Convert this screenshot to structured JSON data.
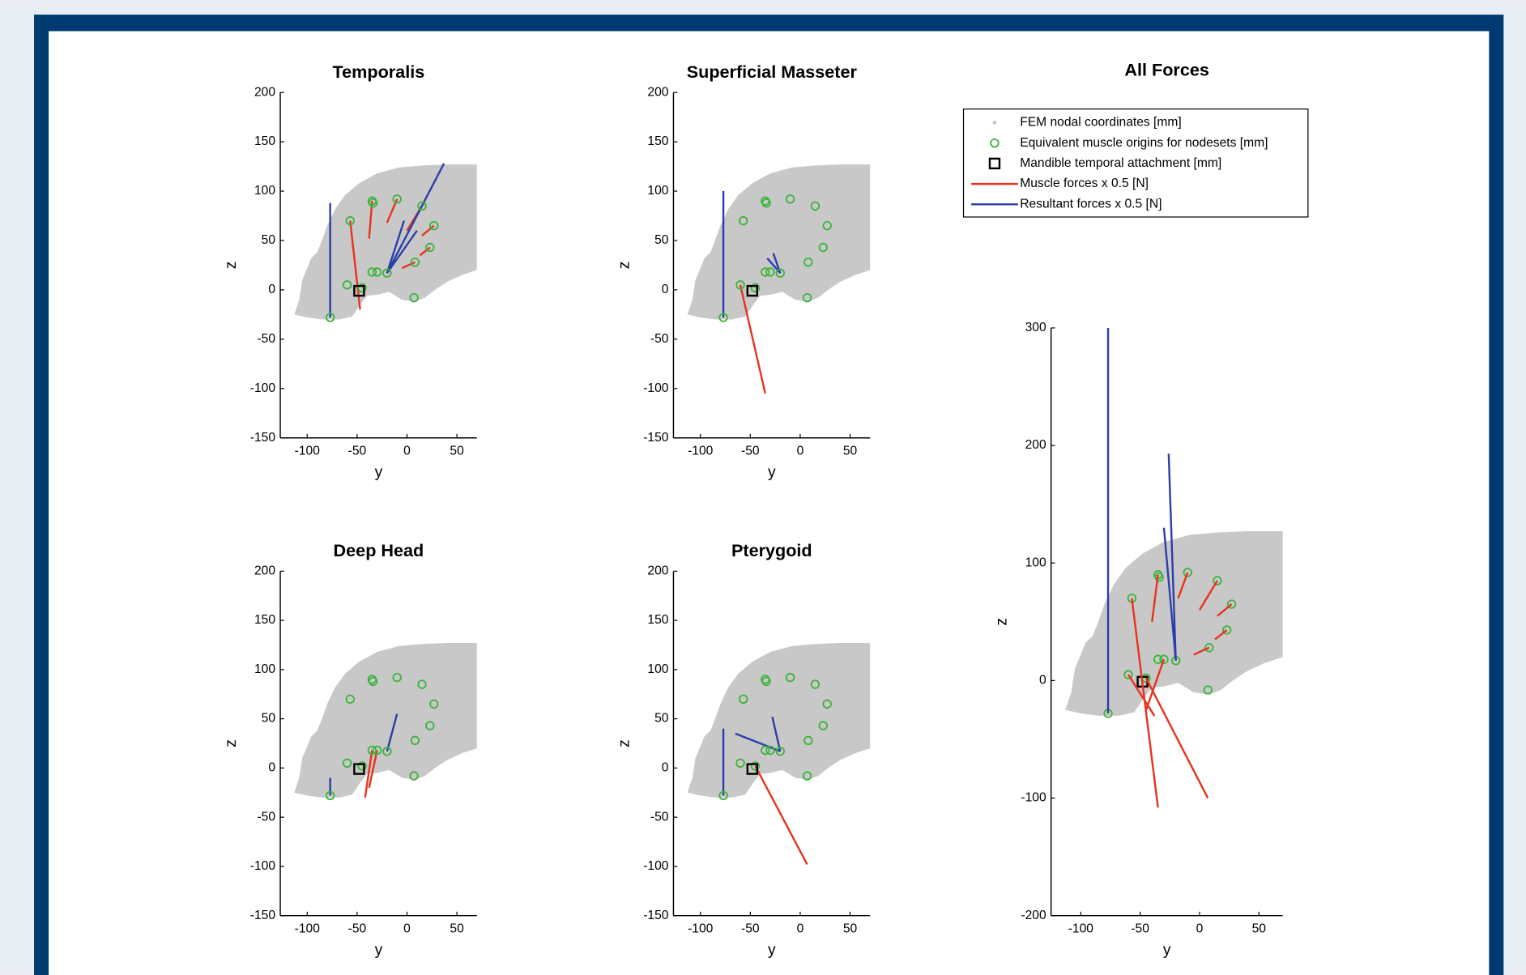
{
  "chart_data": [
    {
      "type": "scatter",
      "title": "Temporalis",
      "xlabel": "y",
      "ylabel": "z",
      "xlim": [
        -127,
        70
      ],
      "ylim": [
        -150,
        200
      ],
      "xticks": [
        -100,
        -50,
        0,
        50
      ],
      "yticks": [
        -150,
        -100,
        -50,
        0,
        50,
        100,
        150,
        200
      ],
      "series": [
        {
          "color": "#c8c8c8",
          "fill": true,
          "x": [
            -113,
            -108,
            -105,
            -100,
            -96,
            -90,
            -86,
            -80,
            -72,
            -62,
            -48,
            -30,
            -8,
            15,
            40,
            70,
            70,
            55,
            40,
            28,
            18,
            8,
            -5,
            -18,
            -30,
            -40,
            -47,
            -55,
            -68,
            -85,
            -100,
            -113
          ],
          "y": [
            -25,
            -10,
            10,
            22,
            32,
            38,
            48,
            65,
            82,
            96,
            108,
            118,
            124,
            126,
            127,
            127,
            20,
            15,
            8,
            0,
            -8,
            -12,
            -10,
            -2,
            -5,
            -6,
            -15,
            -27,
            -30,
            -30,
            -28,
            -25
          ]
        },
        {
          "color": "#e8321e",
          "line": true,
          "x": [
            -57,
            -47,
            null,
            -35,
            -38,
            null,
            -10,
            -20,
            null,
            15,
            0,
            null,
            27,
            15,
            null,
            23,
            13,
            null,
            8,
            -5
          ],
          "y": [
            70,
            -20,
            null,
            90,
            52,
            null,
            92,
            68,
            null,
            85,
            60,
            null,
            65,
            55,
            null,
            43,
            35,
            null,
            28,
            22
          ]
        },
        {
          "color": "#2b3fa8",
          "line": true,
          "x": [
            -77,
            -77,
            null,
            -20,
            37,
            null,
            -20,
            -3,
            null,
            -20,
            10
          ],
          "y": [
            -28,
            88,
            null,
            17,
            128,
            null,
            17,
            70,
            null,
            17,
            60
          ]
        },
        {
          "color": "#3cb43c",
          "marker": "o",
          "x": [
            -57,
            -35,
            -34,
            -10,
            15,
            27,
            23,
            8,
            -35,
            -30,
            -20,
            -60,
            -45,
            7,
            -77
          ],
          "y": [
            70,
            90,
            88,
            92,
            85,
            65,
            43,
            28,
            18,
            18,
            17,
            5,
            2,
            -8,
            -28
          ]
        },
        {
          "color": "#000000",
          "marker": "s",
          "x": [
            -48
          ],
          "y": [
            -1
          ]
        }
      ]
    },
    {
      "type": "scatter",
      "title": "Superficial Masseter",
      "xlabel": "y",
      "ylabel": "z",
      "xlim": [
        -127,
        70
      ],
      "ylim": [
        -150,
        200
      ],
      "xticks": [
        -100,
        -50,
        0,
        50
      ],
      "yticks": [
        -150,
        -100,
        -50,
        0,
        50,
        100,
        150,
        200
      ],
      "series": [
        {
          "color": "#c8c8c8",
          "fill": true,
          "x": [
            -113,
            -108,
            -105,
            -100,
            -96,
            -90,
            -86,
            -80,
            -72,
            -62,
            -48,
            -30,
            -8,
            15,
            40,
            70,
            70,
            55,
            40,
            28,
            18,
            8,
            -5,
            -18,
            -30,
            -40,
            -47,
            -55,
            -68,
            -85,
            -100,
            -113
          ],
          "y": [
            -25,
            -10,
            10,
            22,
            32,
            38,
            48,
            65,
            82,
            96,
            108,
            118,
            124,
            126,
            127,
            127,
            20,
            15,
            8,
            0,
            -8,
            -12,
            -10,
            -2,
            -5,
            -6,
            -15,
            -27,
            -30,
            -30,
            -28,
            -25
          ]
        },
        {
          "color": "#e8321e",
          "line": true,
          "x": [
            -60,
            -35
          ],
          "y": [
            5,
            -105
          ]
        },
        {
          "color": "#2b3fa8",
          "line": true,
          "x": [
            -77,
            -77,
            null,
            -20,
            -33,
            null,
            -20,
            -27
          ],
          "y": [
            -28,
            100,
            null,
            17,
            32,
            null,
            17,
            37
          ]
        },
        {
          "color": "#3cb43c",
          "marker": "o",
          "x": [
            -57,
            -35,
            -34,
            -10,
            15,
            27,
            23,
            8,
            -35,
            -30,
            -20,
            -60,
            -45,
            7,
            -77
          ],
          "y": [
            70,
            90,
            88,
            92,
            85,
            65,
            43,
            28,
            18,
            18,
            17,
            5,
            2,
            -8,
            -28
          ]
        },
        {
          "color": "#000000",
          "marker": "s",
          "x": [
            -48
          ],
          "y": [
            -1
          ]
        }
      ]
    },
    {
      "type": "scatter",
      "title": "Deep Head",
      "xlabel": "y",
      "ylabel": "z",
      "xlim": [
        -127,
        70
      ],
      "ylim": [
        -150,
        200
      ],
      "xticks": [
        -100,
        -50,
        0,
        50
      ],
      "yticks": [
        -150,
        -100,
        -50,
        0,
        50,
        100,
        150,
        200
      ],
      "series": [
        {
          "color": "#c8c8c8",
          "fill": true,
          "x": [
            -113,
            -108,
            -105,
            -100,
            -96,
            -90,
            -86,
            -80,
            -72,
            -62,
            -48,
            -30,
            -8,
            15,
            40,
            70,
            70,
            55,
            40,
            28,
            18,
            8,
            -5,
            -18,
            -30,
            -40,
            -47,
            -55,
            -68,
            -85,
            -100,
            -113
          ],
          "y": [
            -25,
            -10,
            10,
            22,
            32,
            38,
            48,
            65,
            82,
            96,
            108,
            118,
            124,
            126,
            127,
            127,
            20,
            15,
            8,
            0,
            -8,
            -12,
            -10,
            -2,
            -5,
            -6,
            -15,
            -27,
            -30,
            -30,
            -28,
            -25
          ]
        },
        {
          "color": "#e8321e",
          "line": true,
          "x": [
            -35,
            -42,
            null,
            -30,
            -38
          ],
          "y": [
            18,
            -30,
            null,
            18,
            -20
          ]
        },
        {
          "color": "#2b3fa8",
          "line": true,
          "x": [
            -77,
            -77,
            null,
            -20,
            -10
          ],
          "y": [
            -28,
            -10,
            null,
            17,
            55
          ]
        },
        {
          "color": "#3cb43c",
          "marker": "o",
          "x": [
            -57,
            -35,
            -34,
            -10,
            15,
            27,
            23,
            8,
            -35,
            -30,
            -20,
            -60,
            -45,
            7,
            -77
          ],
          "y": [
            70,
            90,
            88,
            92,
            85,
            65,
            43,
            28,
            18,
            18,
            17,
            5,
            2,
            -8,
            -28
          ]
        },
        {
          "color": "#000000",
          "marker": "s",
          "x": [
            -48
          ],
          "y": [
            -1
          ]
        }
      ]
    },
    {
      "type": "scatter",
      "title": "Pterygoid",
      "xlabel": "y",
      "ylabel": "z",
      "xlim": [
        -127,
        70
      ],
      "ylim": [
        -150,
        200
      ],
      "xticks": [
        -100,
        -50,
        0,
        50
      ],
      "yticks": [
        -150,
        -100,
        -50,
        0,
        50,
        100,
        150,
        200
      ],
      "series": [
        {
          "color": "#c8c8c8",
          "fill": true,
          "x": [
            -113,
            -108,
            -105,
            -100,
            -96,
            -90,
            -86,
            -80,
            -72,
            -62,
            -48,
            -30,
            -8,
            15,
            40,
            70,
            70,
            55,
            40,
            28,
            18,
            8,
            -5,
            -18,
            -30,
            -40,
            -47,
            -55,
            -68,
            -85,
            -100,
            -113
          ],
          "y": [
            -25,
            -10,
            10,
            22,
            32,
            38,
            48,
            65,
            82,
            96,
            108,
            118,
            124,
            126,
            127,
            127,
            20,
            15,
            8,
            0,
            -8,
            -12,
            -10,
            -2,
            -5,
            -6,
            -15,
            -27,
            -30,
            -30,
            -28,
            -25
          ]
        },
        {
          "color": "#e8321e",
          "line": true,
          "x": [
            -45,
            7
          ],
          "y": [
            2,
            -98
          ]
        },
        {
          "color": "#2b3fa8",
          "line": true,
          "x": [
            -77,
            -77,
            null,
            -20,
            -65,
            null,
            -20,
            -28
          ],
          "y": [
            -28,
            40,
            null,
            17,
            35,
            null,
            17,
            52
          ]
        },
        {
          "color": "#3cb43c",
          "marker": "o",
          "x": [
            -57,
            -35,
            -34,
            -10,
            15,
            27,
            23,
            8,
            -35,
            -30,
            -20,
            -60,
            -45,
            7,
            -77
          ],
          "y": [
            70,
            90,
            88,
            92,
            85,
            65,
            43,
            28,
            18,
            18,
            17,
            5,
            2,
            -8,
            -28
          ]
        },
        {
          "color": "#000000",
          "marker": "s",
          "x": [
            -48
          ],
          "y": [
            -1
          ]
        }
      ]
    },
    {
      "type": "scatter",
      "title": "All Forces",
      "xlabel": "y",
      "ylabel": "z",
      "xlim": [
        -125,
        70
      ],
      "ylim": [
        -200,
        300
      ],
      "xticks": [
        -100,
        -50,
        0,
        50
      ],
      "yticks": [
        -200,
        -100,
        0,
        100,
        200,
        300
      ],
      "series": [
        {
          "name": "FEM nodal coordinates [mm]",
          "color": "#c8c8c8",
          "fill": true,
          "x": [
            -113,
            -108,
            -105,
            -100,
            -96,
            -90,
            -86,
            -80,
            -72,
            -62,
            -48,
            -30,
            -8,
            15,
            40,
            70,
            70,
            55,
            40,
            28,
            18,
            8,
            -5,
            -18,
            -30,
            -40,
            -47,
            -55,
            -68,
            -85,
            -100,
            -113
          ],
          "y": [
            -25,
            -10,
            10,
            22,
            32,
            38,
            48,
            65,
            82,
            96,
            108,
            118,
            124,
            126,
            127,
            127,
            20,
            15,
            8,
            0,
            -8,
            -12,
            -10,
            -2,
            -5,
            -6,
            -15,
            -27,
            -30,
            -30,
            -28,
            -25
          ]
        },
        {
          "name": "Equivalent muscle origins for nodesets [mm]",
          "color": "#3cb43c",
          "marker": "o",
          "x": [
            -57,
            -35,
            -34,
            -10,
            15,
            27,
            23,
            8,
            -35,
            -30,
            -20,
            -60,
            -45,
            7,
            -77
          ],
          "y": [
            70,
            90,
            88,
            92,
            85,
            65,
            43,
            28,
            18,
            18,
            17,
            5,
            2,
            -8,
            -28
          ]
        },
        {
          "name": "Mandible temporal attachment [mm]",
          "color": "#000000",
          "marker": "s",
          "x": [
            -48
          ],
          "y": [
            -1
          ]
        },
        {
          "name": "Muscle forces x 0.5 [N]",
          "color": "#e8321e",
          "line": true,
          "x": [
            -57,
            -35,
            null,
            -60,
            -38,
            null,
            -45,
            7,
            null,
            -35,
            -40,
            null,
            -10,
            -18,
            null,
            15,
            0,
            null,
            27,
            15,
            null,
            23,
            13,
            null,
            8,
            -5,
            null,
            -30,
            -45
          ],
          "y": [
            70,
            -108,
            null,
            5,
            -30,
            null,
            2,
            -100,
            null,
            90,
            50,
            null,
            92,
            70,
            null,
            85,
            60,
            null,
            65,
            55,
            null,
            43,
            35,
            null,
            28,
            22,
            null,
            18,
            -25
          ]
        },
        {
          "name": "Resultant forces x 0.5 [N]",
          "color": "#2b3fa8",
          "line": true,
          "x": [
            -77,
            -77,
            null,
            -20,
            -26,
            null,
            -20,
            -30
          ],
          "y": [
            -28,
            300,
            null,
            17,
            193,
            null,
            17,
            130
          ]
        }
      ]
    }
  ]
}
